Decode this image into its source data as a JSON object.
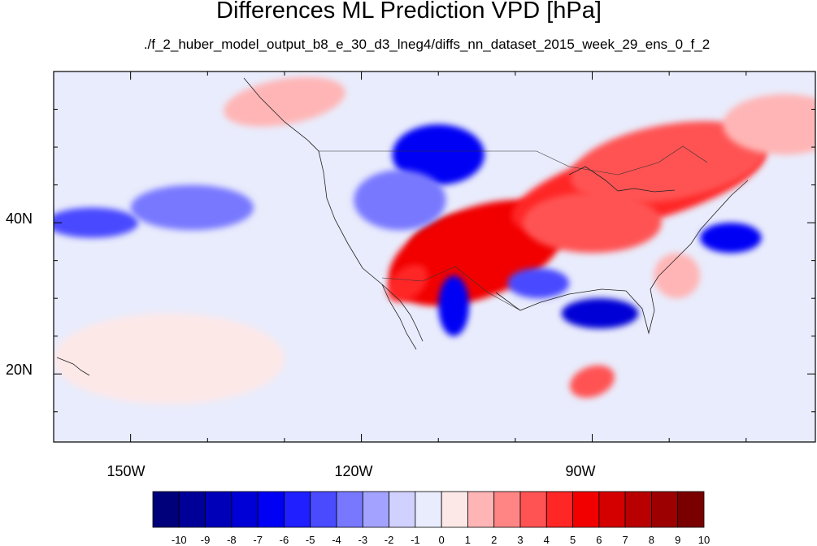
{
  "chart_data": {
    "type": "heatmap",
    "title": "Differences ML Prediction VPD [hPa]",
    "subtitle": "./f_2_huber_model_output_b8_e_30_d3_lneg4/diffs_nn_dataset_2015_week_29_ens_0_f_2",
    "x_axis": {
      "range_lon": [
        -160,
        -61
      ],
      "ticks": [
        {
          "lon": -150,
          "label": "150W"
        },
        {
          "lon": -120,
          "label": "120W"
        },
        {
          "lon": -90,
          "label": "90W"
        }
      ],
      "minor_ticks": [
        -160,
        -150,
        -140,
        -130,
        -120,
        -110,
        -100,
        -90,
        -80,
        -70
      ]
    },
    "y_axis": {
      "range_lat": [
        11,
        60
      ],
      "ticks": [
        {
          "lat": 40,
          "label": "40N"
        },
        {
          "lat": 20,
          "label": "20N"
        }
      ],
      "minor_ticks": [
        15,
        20,
        25,
        30,
        35,
        40,
        45,
        50,
        55
      ]
    },
    "colorbar": {
      "labels": [
        "-10",
        "-9",
        "-8",
        "-7",
        "-6",
        "-5",
        "-4",
        "-3",
        "-2",
        "-1",
        "0",
        "1",
        "2",
        "3",
        "4",
        "5",
        "6",
        "7",
        "8",
        "9",
        "10"
      ],
      "colors": [
        "#00007a",
        "#000099",
        "#0000b8",
        "#0000d6",
        "#0000f5",
        "#1f1fff",
        "#4a4aff",
        "#7878ff",
        "#a3a3ff",
        "#d1d1ff",
        "#e9ecfc",
        "#fde8e8",
        "#ffb5b5",
        "#ff8585",
        "#ff5252",
        "#ff2626",
        "#f20000",
        "#d40000",
        "#b80000",
        "#9c0000",
        "#7a0000"
      ]
    },
    "field_regions": [
      {
        "lon": -107,
        "lat": 37,
        "value": 8,
        "rx": 7,
        "ry": 4,
        "angle": -10
      },
      {
        "lon": -105,
        "lat": 36,
        "value": 6,
        "rx": 12,
        "ry": 6,
        "angle": -20
      },
      {
        "lon": -114,
        "lat": 32,
        "value": 5,
        "rx": 3,
        "ry": 2,
        "angle": -40
      },
      {
        "lon": -84,
        "lat": 45,
        "value": 5,
        "rx": 17,
        "ry": 5,
        "angle": -15
      },
      {
        "lon": -80,
        "lat": 48,
        "value": 4,
        "rx": 13,
        "ry": 5,
        "angle": -10
      },
      {
        "lon": -90,
        "lat": 40,
        "value": 4,
        "rx": 9,
        "ry": 4,
        "angle": 0
      },
      {
        "lon": -79,
        "lat": 33,
        "value": 2,
        "rx": 3,
        "ry": 3,
        "angle": 0
      },
      {
        "lon": -90,
        "lat": 19,
        "value": 4,
        "rx": 3,
        "ry": 2,
        "angle": -20
      },
      {
        "lon": -130,
        "lat": 56,
        "value": 2,
        "rx": 8,
        "ry": 3,
        "angle": -10
      },
      {
        "lon": -65,
        "lat": 53,
        "value": 2,
        "rx": 8,
        "ry": 4,
        "angle": 0
      },
      {
        "lon": -145,
        "lat": 22,
        "value": 1,
        "rx": 15,
        "ry": 6,
        "angle": 0
      },
      {
        "lon": -110,
        "lat": 49,
        "value": -6,
        "rx": 6,
        "ry": 4,
        "angle": 0
      },
      {
        "lon": -115,
        "lat": 43,
        "value": -3,
        "rx": 6,
        "ry": 4,
        "angle": 0
      },
      {
        "lon": -108,
        "lat": 29,
        "value": -6,
        "rx": 2,
        "ry": 4,
        "angle": 0
      },
      {
        "lon": -89,
        "lat": 28,
        "value": -7,
        "rx": 5,
        "ry": 2,
        "angle": 0
      },
      {
        "lon": -97,
        "lat": 32,
        "value": -4,
        "rx": 4,
        "ry": 2,
        "angle": 0
      },
      {
        "lon": -72,
        "lat": 38,
        "value": -6,
        "rx": 4,
        "ry": 2,
        "angle": 0
      },
      {
        "lon": -155,
        "lat": 40,
        "value": -4,
        "rx": 6,
        "ry": 2,
        "angle": 0
      },
      {
        "lon": -142,
        "lat": 42,
        "value": -3,
        "rx": 8,
        "ry": 3,
        "angle": 0
      }
    ]
  }
}
